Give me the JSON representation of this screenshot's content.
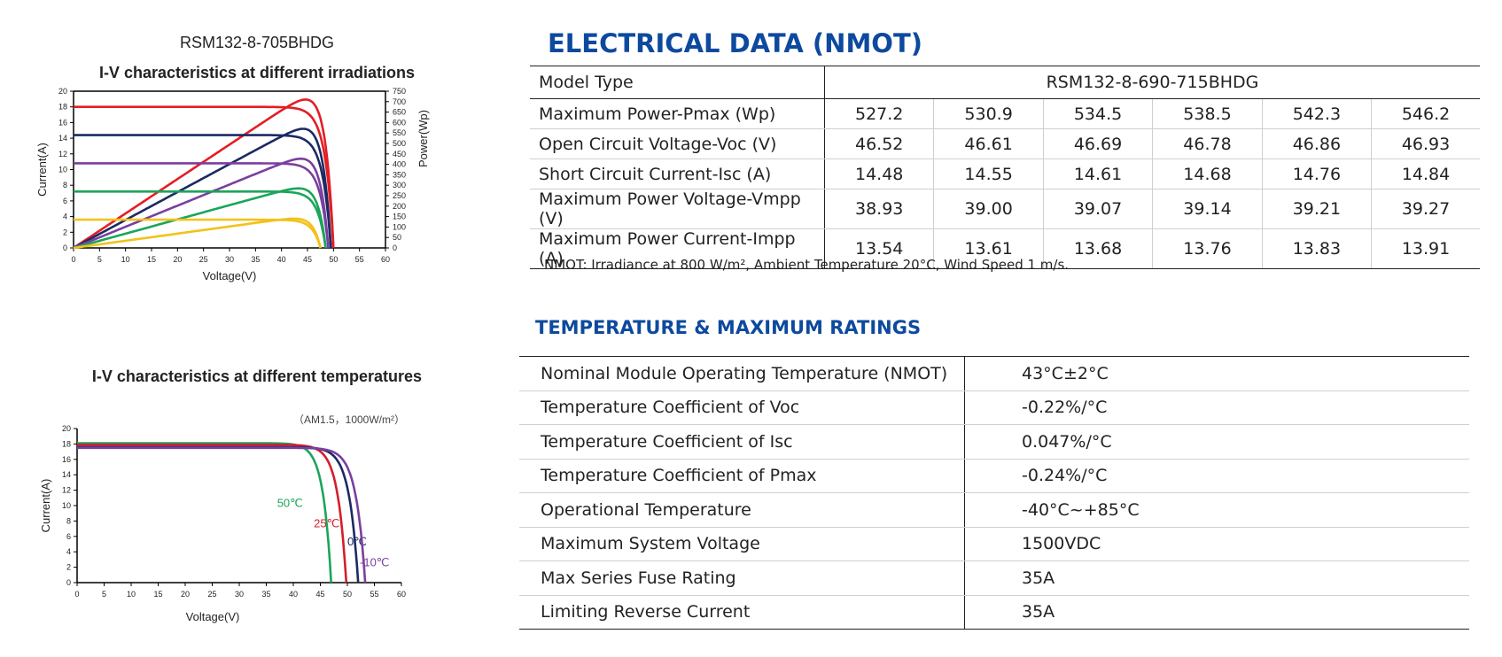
{
  "chart1": {
    "model": "RSM132-8-705BHDG",
    "title": "I-V characteristics at different irradiations",
    "xlabel": "Voltage(V)",
    "ylabel_left": "Current(A)",
    "ylabel_right": "Power(Wp)"
  },
  "chart2": {
    "title": "I-V characteristics at different temperatures",
    "condition": "（AM1.5，1000W/m²）",
    "xlabel": "Voltage(V)",
    "ylabel": "Current(A)"
  },
  "chart_data": [
    {
      "type": "line",
      "title": "I-V characteristics at different irradiations",
      "xlabel": "Voltage(V)",
      "ylabel": "Current(A)",
      "y2label": "Power(Wp)",
      "xlim": [
        0,
        60
      ],
      "ylim": [
        0,
        20
      ],
      "y2lim": [
        0,
        750
      ],
      "xticks": [
        0,
        5,
        10,
        15,
        20,
        25,
        30,
        35,
        40,
        45,
        50,
        55,
        60
      ],
      "yticks": [
        0,
        2,
        4,
        6,
        8,
        10,
        12,
        14,
        16,
        18,
        20
      ],
      "y2ticks": [
        0,
        50,
        100,
        150,
        200,
        250,
        300,
        350,
        400,
        450,
        500,
        550,
        600,
        650,
        700,
        750
      ],
      "grid": false,
      "series": [
        {
          "color": "#e31e24",
          "isc": 18.0,
          "voc": 50.0,
          "pmax": 710,
          "vmp": 41.5
        },
        {
          "color": "#1c2a63",
          "isc": 14.4,
          "voc": 49.5,
          "pmax": 570,
          "vmp": 41.5
        },
        {
          "color": "#7a3fa0",
          "isc": 10.8,
          "voc": 49.0,
          "pmax": 427,
          "vmp": 41.0
        },
        {
          "color": "#1aa55a",
          "isc": 7.2,
          "voc": 48.5,
          "pmax": 285,
          "vmp": 41.0
        },
        {
          "color": "#f2c21b",
          "isc": 3.6,
          "voc": 47.5,
          "pmax": 140,
          "vmp": 40.5
        }
      ]
    },
    {
      "type": "line",
      "title": "I-V characteristics at different temperatures",
      "xlabel": "Voltage(V)",
      "ylabel": "Current(A)",
      "xlim": [
        0,
        60
      ],
      "ylim": [
        0,
        20
      ],
      "xticks": [
        0,
        5,
        10,
        15,
        20,
        25,
        30,
        35,
        40,
        45,
        50,
        55,
        60
      ],
      "yticks": [
        0,
        2,
        4,
        6,
        8,
        10,
        12,
        14,
        16,
        18,
        20
      ],
      "grid": false,
      "series": [
        {
          "name": "50℃",
          "color": "#1aa55a",
          "isc": 18.1,
          "voc": 47.0
        },
        {
          "name": "25℃",
          "color": "#d41e2b",
          "isc": 17.9,
          "voc": 49.8
        },
        {
          "name": "0℃",
          "color": "#1c2a63",
          "isc": 17.6,
          "voc": 52.0
        },
        {
          "name": "-10℃",
          "color": "#7a3fa0",
          "isc": 17.5,
          "voc": 53.3
        }
      ]
    }
  ],
  "electrical": {
    "title": "ELECTRICAL DATA (NMOT)",
    "header_label": "Model Type",
    "header_value": "RSM132-8-690-715BHDG",
    "rows": [
      {
        "label": "Maximum Power-Pmax (Wp)",
        "values": [
          "527.2",
          "530.9",
          "534.5",
          "538.5",
          "542.3",
          "546.2"
        ]
      },
      {
        "label": "Open Circuit Voltage-Voc (V)",
        "values": [
          "46.52",
          "46.61",
          "46.69",
          "46.78",
          "46.86",
          "46.93"
        ]
      },
      {
        "label": "Short Circuit Current-Isc (A)",
        "values": [
          "14.48",
          "14.55",
          "14.61",
          "14.68",
          "14.76",
          "14.84"
        ]
      },
      {
        "label": "Maximum Power Voltage-Vmpp (V)",
        "values": [
          "38.93",
          "39.00",
          "39.07",
          "39.14",
          "39.21",
          "39.27"
        ]
      },
      {
        "label": "Maximum Power Current-Impp (A)",
        "values": [
          "13.54",
          "13.61",
          "13.68",
          "13.76",
          "13.83",
          "13.91"
        ]
      }
    ],
    "note": "NMOT: Irradiance at 800 W/m², Ambient Temperature 20°C, Wind Speed 1 m/s."
  },
  "temperature": {
    "title": "TEMPERATURE & MAXIMUM RATINGS",
    "rows": [
      {
        "label": "Nominal Module Operating Temperature (NMOT)",
        "value": "43°C±2°C"
      },
      {
        "label": "Temperature Coefficient of Voc",
        "value": "-0.22%/°C"
      },
      {
        "label": "Temperature Coefficient of Isc",
        "value": "0.047%/°C"
      },
      {
        "label": "Temperature Coefficient of Pmax",
        "value": "-0.24%/°C"
      },
      {
        "label": "Operational Temperature",
        "value": "-40°C~+85°C"
      },
      {
        "label": "Maximum System Voltage",
        "value": "1500VDC"
      },
      {
        "label": "Max Series Fuse Rating",
        "value": "35A"
      },
      {
        "label": "Limiting Reverse Current",
        "value": "35A"
      }
    ]
  }
}
